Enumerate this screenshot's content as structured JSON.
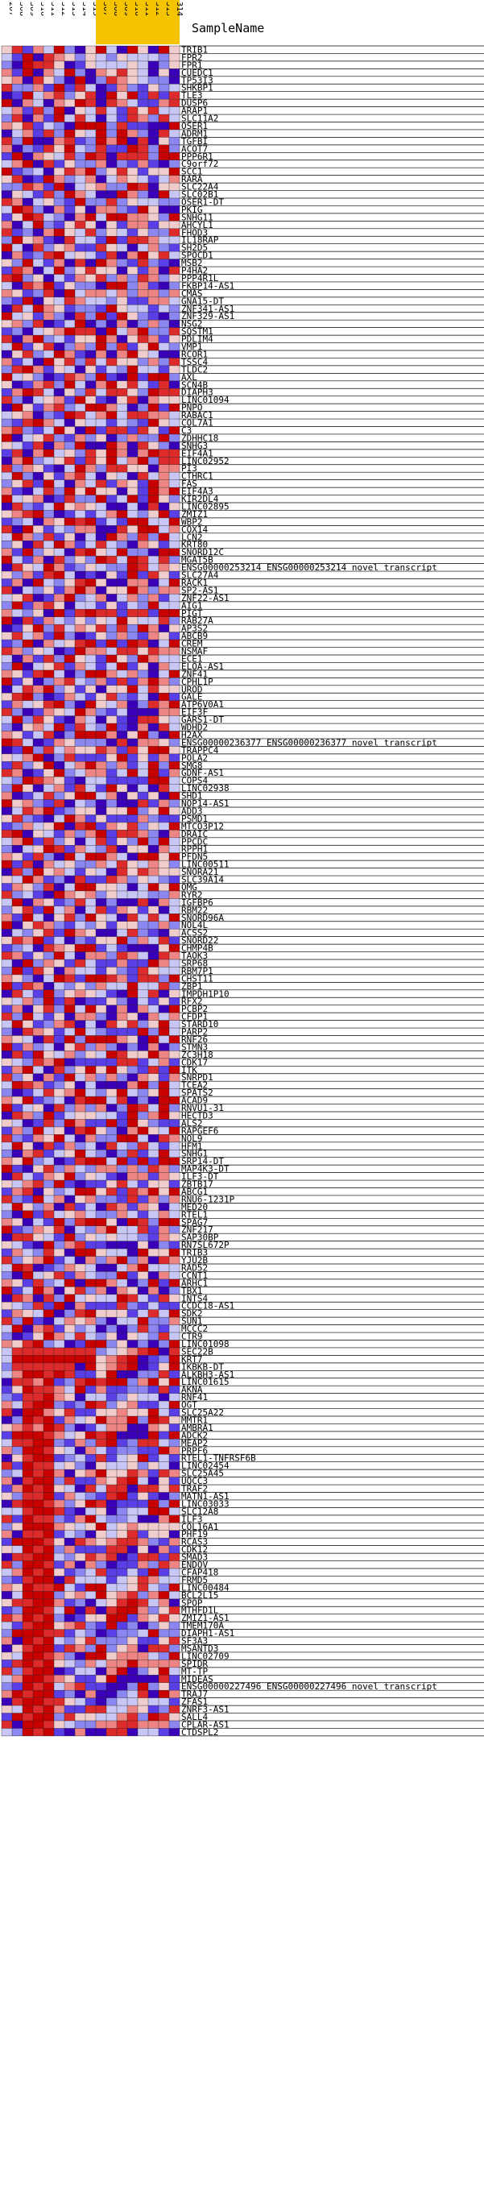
{
  "chart_data": {
    "type": "heatmap",
    "header_label": "SampleName",
    "columns": [
      {
        "label": "207",
        "color": "#ffffff"
      },
      {
        "label": "308",
        "color": "#ffffff"
      },
      {
        "label": "309",
        "color": "#ffffff"
      },
      {
        "label": "310",
        "color": "#ffffff"
      },
      {
        "label": "311",
        "color": "#ffffff"
      },
      {
        "label": "312",
        "color": "#ffffff"
      },
      {
        "label": "313",
        "color": "#ffffff"
      },
      {
        "label": "314",
        "color": "#ffffff"
      },
      {
        "label": "315",
        "color": "#ffffff"
      },
      {
        "label": "307",
        "color": "#f5c400"
      },
      {
        "label": "308",
        "color": "#f5c400"
      },
      {
        "label": "309",
        "color": "#f5c400"
      },
      {
        "label": "310",
        "color": "#f5c400"
      },
      {
        "label": "311",
        "color": "#f5c400"
      },
      {
        "label": "312",
        "color": "#f5c400"
      },
      {
        "label": "313",
        "color": "#f5c400"
      },
      {
        "label": "314",
        "color": "#f5c400"
      }
    ],
    "palette": [
      "#3a00b8",
      "#5a3ee6",
      "#8c86f0",
      "#c8c6f4",
      "#f1cccc",
      "#ee8585",
      "#dd2a2a",
      "#c80000"
    ],
    "rows": [
      [
        "TRIB1",
        "46153720"
      ],
      [
        "FPR2",
        "31706542"
      ],
      [
        "FPR1",
        "20766401"
      ],
      [
        "CUEDC1",
        "51705372"
      ],
      [
        "TP53I3",
        "45064207"
      ],
      [
        "SHKBP1",
        "62251716"
      ],
      [
        "TLE3",
        "01735624"
      ],
      [
        "DUSP6",
        "70530547"
      ],
      [
        "ARAP1",
        "35162704"
      ],
      [
        "SLC11A2",
        "26051736"
      ],
      [
        "OSER1",
        "54613207"
      ],
      [
        "ADRM1",
        "03516274"
      ],
      [
        "TGFBI",
        "62700561"
      ],
      [
        "ACOT7",
        "50216473"
      ],
      [
        "PPP6R1",
        "17054362"
      ],
      [
        "C9orf72",
        "35706142"
      ],
      [
        "SCC1",
        "71230465"
      ],
      [
        "RARA",
        "46017523"
      ],
      [
        "SLC22A4",
        "22651703"
      ],
      [
        "SLC02B1",
        "04316275"
      ],
      [
        "OSER1-DT",
        "65034217"
      ],
      [
        "PKIG",
        "37620514"
      ],
      [
        "SNHG11",
        "14763205"
      ],
      [
        "AHCYL1",
        "50372146"
      ],
      [
        "FHOD3",
        "61205743"
      ],
      [
        "IL18RAP",
        "27451063"
      ],
      [
        "SH2D5",
        "73062451"
      ],
      [
        "SPOCD1",
        "05126734"
      ],
      [
        "MSB2",
        "42731506"
      ],
      [
        "P4HA2",
        "16503724"
      ],
      [
        "PPP4R1L",
        "67240315"
      ],
      [
        "FKBP14-AS1",
        "30657142"
      ],
      [
        "CMAS",
        "54126073"
      ],
      [
        "GNA15-DT",
        "21704365"
      ],
      [
        "ZNF341-AS1",
        "06375412"
      ],
      [
        "ZNF329-AS1",
        "73415206"
      ],
      [
        "NSG2",
        "45260137"
      ],
      [
        "SQSTM1",
        "12034576"
      ],
      [
        "PDLIM4",
        "60572314"
      ],
      [
        "VMP1",
        "37146025"
      ],
      [
        "RCOR1",
        "04623751"
      ],
      [
        "TSSC4",
        "51307462"
      ],
      [
        "TLDC2",
        "26751430"
      ],
      [
        "AXL",
        "73420165"
      ],
      [
        "SCN4B",
        "40156273"
      ],
      [
        "DIAPH3",
        "15763042"
      ],
      [
        "LINC01094",
        "62034517"
      ],
      [
        "PNPO",
        "07415623"
      ],
      [
        "RABAC1",
        "34502176"
      ],
      [
        "COL7A1",
        "21675304"
      ],
      [
        "C3",
        "56213740"
      ],
      [
        "ZDHHC18",
        "70346215"
      ],
      [
        "SNHG3",
        "43160527"
      ],
      [
        "EIF4A1",
        "16057342"
      ],
      [
        "LINC02952",
        "05723461"
      ],
      [
        "PI3",
        "62541037"
      ],
      [
        "CTHRC1",
        "37204156"
      ],
      [
        "FAS",
        "24617305"
      ],
      [
        "EIF4A3",
        "51036274"
      ],
      [
        "KIR2DL4",
        "73450162"
      ],
      [
        "LINC02895",
        "06213745"
      ],
      [
        "ZMIZ1",
        "45672013"
      ],
      [
        "WBP2",
        "12305476"
      ],
      [
        "COX14",
        "60741325"
      ],
      [
        "LCN2",
        "37526140"
      ],
      [
        "KRT80",
        "24063751"
      ],
      [
        "SNORD12C",
        "51724306"
      ],
      [
        "MGAT5B",
        "73150624"
      ],
      [
        "ENSG00000253214   ENSG00000253214 novel transcript",
        "06437512"
      ],
      [
        "SLC27A4",
        "42516730"
      ],
      [
        "RACK1",
        "15073246"
      ],
      [
        "SP2-AS1",
        "60324157"
      ],
      [
        "ZNF22-AS1",
        "34601572"
      ],
      [
        "AIG1",
        "27156403"
      ],
      [
        "PIGT",
        "53240716"
      ],
      [
        "RAB27A",
        "70615324"
      ],
      [
        "AP3S2",
        "01472635"
      ],
      [
        "ABCB9",
        "46351720"
      ],
      [
        "CREM",
        "12705346"
      ],
      [
        "NSMAF",
        "65243017"
      ],
      [
        "ECE1",
        "30516274"
      ],
      [
        "ELOA-AS1",
        "27034615"
      ],
      [
        "ZNF41",
        "54167302"
      ],
      [
        "CPHL1P",
        "71402563"
      ],
      [
        "UROD",
        "03657241"
      ],
      [
        "GALE",
        "46720153"
      ],
      [
        "ATP6V0A1",
        "15346720"
      ],
      [
        "EIF3F",
        "62015437"
      ],
      [
        "GARS1-DT",
        "37264105"
      ],
      [
        "WDHD2",
        "20453716"
      ],
      [
        "H2AX",
        "54136027"
      ],
      [
        "ENSG00000236377   ENSG00000236377 novel transcript",
        "76301542"
      ],
      [
        "TRAPPC4",
        "01726354"
      ],
      [
        "POLA2",
        "43570261"
      ],
      [
        "SMG8",
        "16247035"
      ],
      [
        "GDNF-AS1",
        "65014723"
      ],
      [
        "COPS4",
        "32765410"
      ],
      [
        "LINC02938",
        "27403516"
      ],
      [
        "SHD1",
        "50136247"
      ],
      [
        "NOP14-AS1",
        "74521603"
      ],
      [
        "ADD3",
        "03657124"
      ],
      [
        "PSMD1",
        "46210375"
      ],
      [
        "MTCO3P12",
        "12534706"
      ],
      [
        "DRAIC",
        "67043152"
      ],
      [
        "PPCDC",
        "35716240"
      ],
      [
        "RPPH1",
        "20347615"
      ],
      [
        "PFDN5",
        "54162073"
      ],
      [
        "LINC00511",
        "71605342"
      ],
      [
        "SNORA21",
        "06274531"
      ],
      [
        "SLC39A14",
        "43751206"
      ],
      [
        "OMG",
        "15426037"
      ],
      [
        "RYR2",
        "62310754"
      ],
      [
        "IGFBP6",
        "37054126"
      ],
      [
        "RBM22",
        "24617350"
      ],
      [
        "SNORD96A",
        "51730462"
      ],
      [
        "NOL4L",
        "70465213"
      ],
      [
        "ACSS2",
        "03246175"
      ],
      [
        "SNORD22",
        "46571302"
      ],
      [
        "CHMP4B",
        "12306547"
      ],
      [
        "TAOK3",
        "65142730"
      ],
      [
        "SRP68",
        "30725416"
      ],
      [
        "RBM7P1",
        "27164053"
      ],
      [
        "CHST11",
        "54203761"
      ],
      [
        "ZBP1",
        "71650324"
      ],
      [
        "IMPDH1P10",
        "06317245"
      ],
      [
        "RFX2",
        "43527160"
      ],
      [
        "PCBP2",
        "15046273"
      ],
      [
        "CFDP1",
        "62731405"
      ],
      [
        "STARD10",
        "37412560"
      ],
      [
        "PARP2",
        "20654137"
      ],
      [
        "RNF26",
        "54306172"
      ],
      [
        "STMN3",
        "71523046"
      ],
      [
        "ZC3H18",
        "06174352"
      ],
      [
        "CDK17",
        "43265701"
      ],
      [
        "ITK",
        "15730624"
      ],
      [
        "SNRPD1",
        "62405173"
      ],
      [
        "TCEA2",
        "37651240"
      ],
      [
        "SPATS2",
        "20136457"
      ],
      [
        "ACAD9",
        "54712306"
      ],
      [
        "RNVU1-31",
        "71340625"
      ],
      [
        "HECTD3",
        "06527134"
      ],
      [
        "ALS2",
        "43016275"
      ],
      [
        "RAPGEF6",
        "15273406"
      ],
      [
        "NOL9",
        "62154730"
      ],
      [
        "HFM1",
        "37406152"
      ],
      [
        "SNHG1",
        "20561347"
      ],
      [
        "SRP14-DT",
        "54723016"
      ],
      [
        "MAP4K3-DT",
        "71046253"
      ],
      [
        "ILF3-DT",
        "06315472"
      ],
      [
        "ZBTB17",
        "43562710"
      ],
      [
        "ABCG1",
        "15604237"
      ],
      [
        "RNU6-1231P",
        "62173504"
      ],
      [
        "MED20",
        "37425061"
      ],
      [
        "RTEL1",
        "20716345"
      ],
      [
        "SPAG7",
        "54031726"
      ],
      [
        "ZNF217",
        "71254603"
      ],
      [
        "SAP30BP",
        "06643172"
      ],
      [
        "RN7SL672P",
        "43107256"
      ],
      [
        "TRIB3",
        "15326407"
      ],
      [
        "YJU2B",
        "62457130"
      ],
      [
        "RAD52",
        "37601254"
      ],
      [
        "CCNT1",
        "20734615"
      ],
      [
        "ARHC1",
        "54162370"
      ],
      [
        "TBX1",
        "71375046"
      ],
      [
        "INTS4",
        "06506273"
      ],
      [
        "CCDC18-AS1",
        "43261705"
      ],
      [
        "SDK2",
        "15437026"
      ],
      [
        "SUN1",
        "62710354"
      ],
      [
        "MCCC2",
        "37056142"
      ],
      [
        "CTR9",
        "20147536"
      ],
      [
        "LINC01098",
        "54672301"
      ],
      [
        "SEC22B",
        "36666666"
      ],
      [
        "KRT7",
        "37777777"
      ],
      [
        "IKBKB-DT",
        "26666660"
      ],
      [
        "ALKBH3-AS1",
        "35776761"
      ],
      [
        "LINC01615",
        "06657126"
      ],
      [
        "AKNA",
        "14766537"
      ],
      [
        "RNF41",
        "21667540"
      ],
      [
        "OGT",
        "53677212"
      ],
      [
        "SLC25A22",
        "60775461"
      ],
      [
        "MMTR1",
        "02767153"
      ],
      [
        "AMBRA1",
        "45657620"
      ],
      [
        "ADCK2",
        "17776534"
      ],
      [
        "MEAP2",
        "36677215"
      ],
      [
        "PRPF6",
        "52776430"
      ],
      [
        "RTEL1-TNFRSF6B",
        "04677123"
      ],
      [
        "LINC02454",
        "61766342"
      ],
      [
        "SLC25A45",
        "23767504"
      ],
      [
        "UQCC3",
        "50677261"
      ],
      [
        "TRAF2",
        "15767430"
      ],
      [
        "MATN1-AS1",
        "42667153"
      ],
      [
        "LINC03033",
        "06776524"
      ],
      [
        "SLC12A8",
        "33677610"
      ],
      [
        "ILF3",
        "61766215"
      ],
      [
        "COL16A1",
        "24777543"
      ],
      [
        "PHF19",
        "50667132"
      ],
      [
        "RCAS3",
        "17776406"
      ],
      [
        "CDK12",
        "43767251"
      ],
      [
        "SMAD3",
        "06677324"
      ],
      [
        "ENDOV",
        "62776150"
      ],
      [
        "CFAP418",
        "35767412"
      ],
      [
        "FRMD5",
        "21677063"
      ],
      [
        "LINC00484",
        "54766731"
      ],
      [
        "BCL2L15",
        "03777245"
      ],
      [
        "SPOP",
        "46677512"
      ],
      [
        "MTHFD1L",
        "12776370"
      ],
      [
        "ZMIZ1-AS1",
        "65767201"
      ],
      [
        "TMEM170A",
        "31677456"
      ],
      [
        "DIAPH1-AS1",
        "27776613"
      ],
      [
        "SF3A3",
        "50767324"
      ],
      [
        "MSANTD3",
        "04677165"
      ],
      [
        "LINC02709",
        "43776520"
      ],
      [
        "SPIDR",
        "16767432"
      ],
      [
        "MT-TP",
        "62677013"
      ],
      [
        "MIDEAS",
        "35776541"
      ],
      [
        "ENSG00000227496   ENSG00000227496 novel transcript",
        "21767356"
      ],
      [
        "TRAJ7",
        "57677120"
      ],
      [
        "ZFAS1",
        "06776643"
      ],
      [
        "ZNRF3-AS1",
        "43767511"
      ],
      [
        "SALL4",
        "17677264"
      ],
      [
        "CPLAR-AS1",
        "60776432"
      ],
      [
        "CTDSPL2",
        "32767105"
      ]
    ]
  }
}
